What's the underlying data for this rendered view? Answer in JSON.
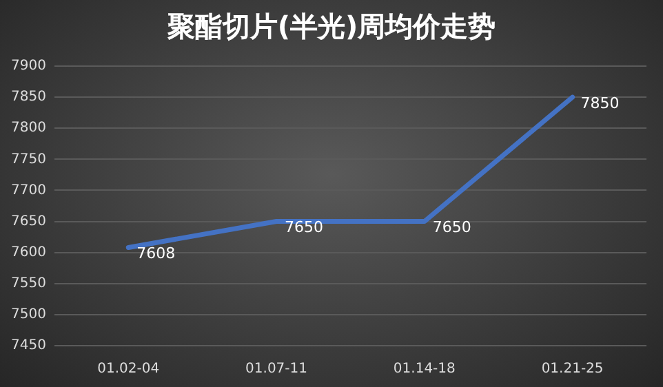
{
  "chart_data": {
    "type": "line",
    "title": "聚酯切片(半光)周均价走势",
    "categories": [
      "01.02-04",
      "01.07-11",
      "01.14-18",
      "01.21-25"
    ],
    "series": [
      {
        "color": "#4472c4",
        "values": [
          7608,
          7650,
          7650,
          7850
        ]
      }
    ],
    "ylim": [
      7450,
      7900
    ],
    "yticks": [
      7450,
      7500,
      7550,
      7600,
      7650,
      7700,
      7750,
      7800,
      7850,
      7900
    ],
    "grid": "y",
    "data_labels": true,
    "marker": "none",
    "line_style": "solid",
    "legend": false
  }
}
